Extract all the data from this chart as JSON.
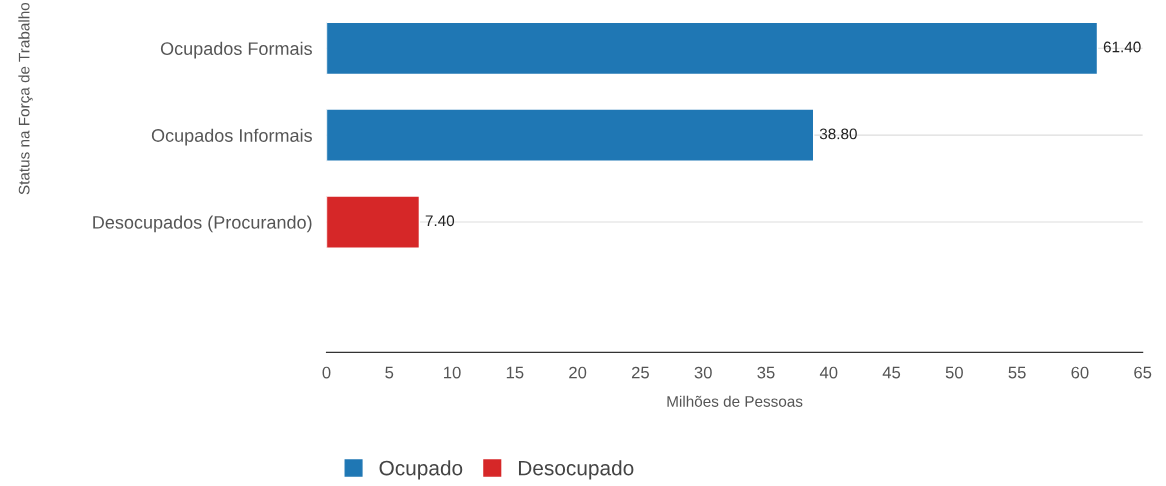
{
  "chart_data": {
    "type": "bar",
    "orientation": "horizontal",
    "categories": [
      "Ocupados Formais",
      "Ocupados Informais",
      "Desocupados (Procurando)"
    ],
    "series": [
      {
        "name": "Ocupado",
        "color": "#1f77b4",
        "values": [
          61.4,
          38.8,
          null
        ],
        "value_labels": [
          "61.40",
          "38.80",
          null
        ]
      },
      {
        "name": "Desocupado",
        "color": "#d62728",
        "values": [
          null,
          null,
          7.4
        ],
        "value_labels": [
          null,
          null,
          "7.40"
        ]
      }
    ],
    "xlabel": "Milhões de Pessoas",
    "ylabel": "Status na Força de Trabalho",
    "xlim": [
      0,
      65
    ],
    "xticks": [
      0,
      5,
      10,
      15,
      20,
      25,
      30,
      35,
      40,
      45,
      50,
      55,
      60,
      65
    ],
    "grid": "y",
    "legend": "bottom left"
  }
}
